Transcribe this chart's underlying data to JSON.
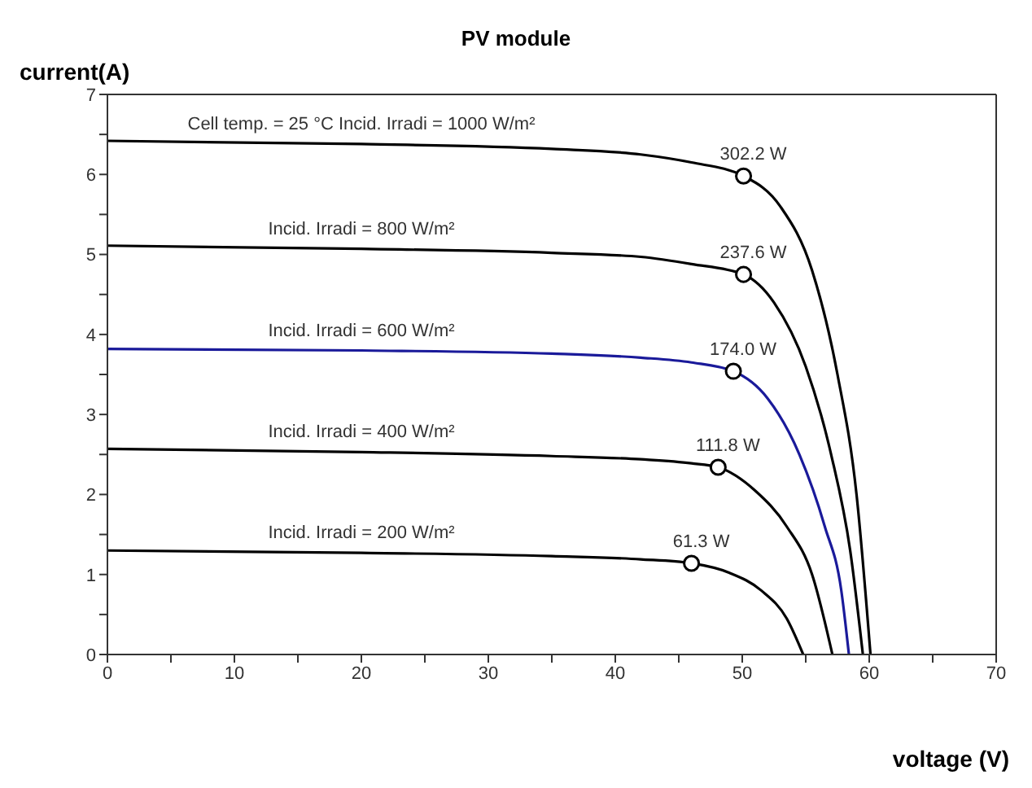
{
  "chart_data": {
    "type": "line",
    "title": "PV module",
    "xlabel": "voltage (V)",
    "ylabel": "current(A)",
    "xlim": [
      0,
      70
    ],
    "xticks": [
      0,
      {
        "value": 5,
        "label": null
      },
      10,
      {
        "value": 15,
        "label": null
      },
      20,
      {
        "value": 25,
        "label": null
      },
      30,
      {
        "value": 35,
        "label": null
      },
      40,
      {
        "value": 45,
        "label": null
      },
      50,
      {
        "value": 55,
        "label": null
      },
      60,
      {
        "value": 65,
        "label": null
      },
      70
    ],
    "ylim": [
      0,
      7
    ],
    "yticks": [
      0,
      {
        "value": 0.5,
        "label": null
      },
      1,
      {
        "value": 1.5,
        "label": null
      },
      2,
      {
        "value": 2.5,
        "label": null
      },
      3,
      {
        "value": 3.5,
        "label": null
      },
      4,
      {
        "value": 4.5,
        "label": null
      },
      5,
      {
        "value": 5.5,
        "label": null
      },
      6,
      {
        "value": 6.5,
        "label": null
      },
      7
    ],
    "grid": false,
    "legend": false,
    "marker": "none",
    "line_style": "solid",
    "series": [
      {
        "name": "Cell temp. = 25 °C Incid. Irradi = 1000 W/m²",
        "color": "#000000",
        "x": [
          0,
          20,
          35,
          42,
          46,
          50.1,
          53,
          55.5,
          57.5,
          59,
          60.1
        ],
        "values": [
          6.42,
          6.38,
          6.32,
          6.25,
          6.15,
          5.98,
          5.6,
          4.8,
          3.5,
          2,
          0
        ]
      },
      {
        "name": "Incid. Irradi = 800 W/m²",
        "color": "#000000",
        "x": [
          0,
          20,
          35,
          42,
          46,
          50.1,
          52.5,
          55,
          57,
          58.5,
          59.5
        ],
        "values": [
          5.11,
          5.07,
          5.02,
          4.97,
          4.88,
          4.75,
          4.4,
          3.6,
          2.5,
          1.3,
          0
        ]
      },
      {
        "name": "Incid. Irradi = 600 W/m²",
        "color": "#1a1a9a",
        "x": [
          0,
          20,
          35,
          42,
          46,
          49.3,
          52,
          54.5,
          56.5,
          57.8,
          58.4
        ],
        "values": [
          3.82,
          3.8,
          3.76,
          3.71,
          3.65,
          3.54,
          3.2,
          2.5,
          1.6,
          0.8,
          0
        ]
      },
      {
        "name": "Incid. Irradi = 400 W/m²",
        "color": "#000000",
        "x": [
          0,
          20,
          35,
          42,
          46,
          48.1,
          51,
          53.5,
          55.5,
          57.1
        ],
        "values": [
          2.57,
          2.53,
          2.48,
          2.44,
          2.39,
          2.34,
          2.05,
          1.6,
          1,
          0
        ]
      },
      {
        "name": "Incid. Irradi = 200 W/m²",
        "color": "#000000",
        "x": [
          0,
          20,
          35,
          42,
          46,
          49,
          51.5,
          53.5,
          54.8
        ],
        "values": [
          1.3,
          1.27,
          1.23,
          1.19,
          1.14,
          1.02,
          0.8,
          0.45,
          0
        ]
      },
      {
        "type": "scatter",
        "marker": "circle",
        "color": "#000000",
        "x": [
          50.1,
          50.1,
          49.3,
          48.1,
          46
        ],
        "values": [
          5.98,
          4.75,
          3.54,
          2.34,
          1.14
        ]
      }
    ],
    "annotations": [
      {
        "text": "302.2 W",
        "x": 50.1,
        "y": 5.98
      },
      {
        "text": "237.6 W",
        "x": 50.1,
        "y": 4.75
      },
      {
        "text": "174.0 W",
        "x": 49.3,
        "y": 3.54
      },
      {
        "text": "111.8 W",
        "x": 48.1,
        "y": 2.34
      },
      {
        "text": "61.3 W",
        "x": 46,
        "y": 1.14
      }
    ]
  }
}
